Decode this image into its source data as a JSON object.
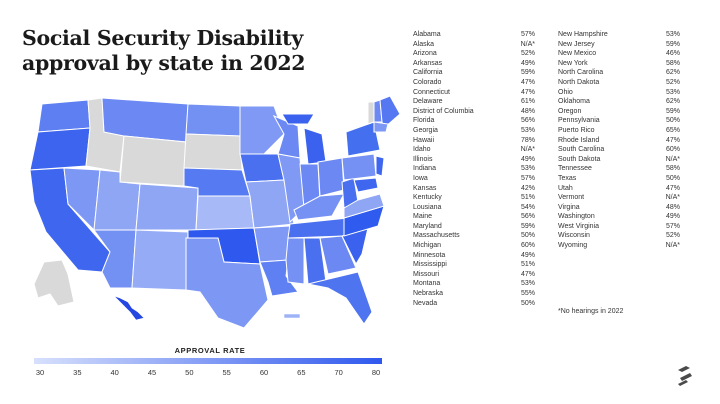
{
  "title": "Social Security Disability approval by state in 2022",
  "legend": {
    "title": "APPROVAL RATE",
    "ticks": [
      "30",
      "35",
      "40",
      "45",
      "50",
      "55",
      "60",
      "65",
      "70",
      "80"
    ],
    "color_low": "#d7e0fc",
    "color_high": "#2f58ee",
    "no_data_color": "#d9d9d9"
  },
  "column1": [
    {
      "state": "Alabama",
      "rate": "57%"
    },
    {
      "state": "Alaska",
      "rate": "N/A*"
    },
    {
      "state": "Arizona",
      "rate": "52%"
    },
    {
      "state": "Arkansas",
      "rate": "49%"
    },
    {
      "state": "California",
      "rate": "59%"
    },
    {
      "state": "Colorado",
      "rate": "47%"
    },
    {
      "state": "Connecticut",
      "rate": "47%"
    },
    {
      "state": "Delaware",
      "rate": "61%"
    },
    {
      "state": "District of Columbia",
      "rate": "48%"
    },
    {
      "state": "Florida",
      "rate": "56%"
    },
    {
      "state": "Georgia",
      "rate": "53%"
    },
    {
      "state": "Hawaii",
      "rate": "78%"
    },
    {
      "state": "Idaho",
      "rate": "N/A*"
    },
    {
      "state": "Illinois",
      "rate": "49%"
    },
    {
      "state": "Indiana",
      "rate": "53%"
    },
    {
      "state": "Iowa",
      "rate": "57%"
    },
    {
      "state": "Kansas",
      "rate": "42%"
    },
    {
      "state": "Kentucky",
      "rate": "51%"
    },
    {
      "state": "Lousiana",
      "rate": "54%"
    },
    {
      "state": "Maine",
      "rate": "56%"
    },
    {
      "state": "Maryland",
      "rate": "59%"
    },
    {
      "state": "Massachusetts",
      "rate": "50%"
    },
    {
      "state": "Michigan",
      "rate": "60%"
    },
    {
      "state": "Minnesota",
      "rate": "49%"
    },
    {
      "state": "Mississippi",
      "rate": "51%"
    },
    {
      "state": "Missouri",
      "rate": "47%"
    },
    {
      "state": "Montana",
      "rate": "53%"
    },
    {
      "state": "Nebraska",
      "rate": "55%"
    },
    {
      "state": "Nevada",
      "rate": "50%"
    }
  ],
  "column2": [
    {
      "state": "New Hampshire",
      "rate": "53%"
    },
    {
      "state": "New Jersey",
      "rate": "59%"
    },
    {
      "state": "New Mexico",
      "rate": "46%"
    },
    {
      "state": "New York",
      "rate": "58%"
    },
    {
      "state": "North Carolina",
      "rate": "62%"
    },
    {
      "state": "North Dakota",
      "rate": "52%"
    },
    {
      "state": "Ohio",
      "rate": "53%"
    },
    {
      "state": "Oklahoma",
      "rate": "62%"
    },
    {
      "state": "Oregon",
      "rate": "59%"
    },
    {
      "state": "Pennsylvania",
      "rate": "50%"
    },
    {
      "state": "Puerto Rico",
      "rate": "65%"
    },
    {
      "state": "Rhode Island",
      "rate": "47%"
    },
    {
      "state": "South Carolina",
      "rate": "60%"
    },
    {
      "state": "South Dakota",
      "rate": "N/A*"
    },
    {
      "state": "Tennessee",
      "rate": "58%"
    },
    {
      "state": "Texas",
      "rate": "50%"
    },
    {
      "state": "Utah",
      "rate": "47%"
    },
    {
      "state": "Vermont",
      "rate": "N/A*"
    },
    {
      "state": "Virgina",
      "rate": "48%"
    },
    {
      "state": "Washington",
      "rate": "49%"
    },
    {
      "state": "West Virginia",
      "rate": "57%"
    },
    {
      "state": "Wisconsin",
      "rate": "52%"
    },
    {
      "state": "Wyoming",
      "rate": "N/A*"
    }
  ],
  "footnote": "*No hearings in 2022",
  "logo_icon": "brand-logo-icon"
}
